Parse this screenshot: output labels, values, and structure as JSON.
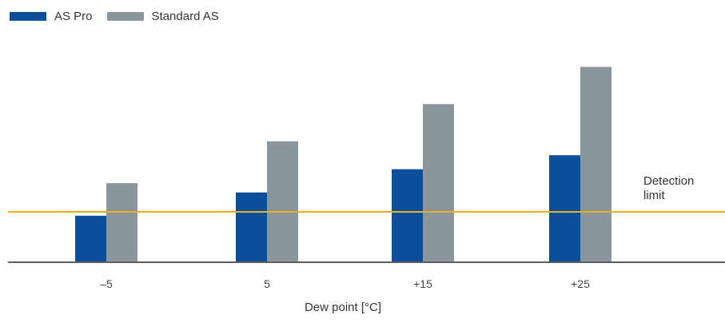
{
  "chart_data": {
    "type": "bar",
    "title": "",
    "xlabel": "Dew point [°C]",
    "ylabel": "",
    "categories": [
      "–5",
      "5",
      "+15",
      "+25"
    ],
    "series": [
      {
        "name": "AS Pro",
        "values": [
          1.0,
          1.5,
          2.0,
          2.3
        ],
        "color": "#0a4f9c"
      },
      {
        "name": "Standard AS",
        "values": [
          1.7,
          2.6,
          3.4,
          4.2
        ],
        "color": "#8a969c"
      }
    ],
    "ylim": [
      0,
      4.4
    ],
    "reference_line": {
      "label_line1": "Detection",
      "label_line2": "limit",
      "value": 1.0,
      "color": "#f0b21a"
    },
    "grid": false,
    "legend_position": "top-left"
  }
}
